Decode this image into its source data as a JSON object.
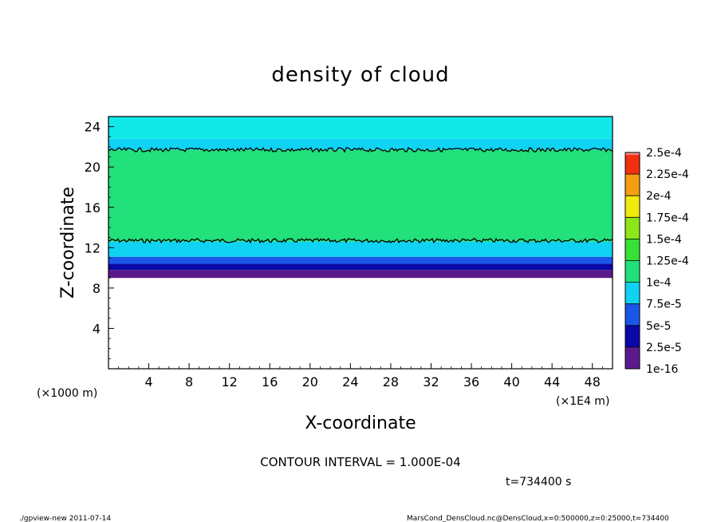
{
  "chart_data": {
    "type": "heatmap",
    "title": "density of cloud",
    "xlabel": "X-coordinate",
    "ylabel": "Z-coordinate",
    "x_unit_label": "(×1000 m)",
    "x_scale_label": "(×1E4 m)",
    "xlim": [
      0,
      50
    ],
    "ylim": [
      0,
      25
    ],
    "x_ticks": [
      "4",
      "8",
      "12",
      "16",
      "20",
      "24",
      "28",
      "32",
      "36",
      "40",
      "44",
      "48"
    ],
    "y_ticks": [
      "4",
      "8",
      "12",
      "16",
      "20",
      "24"
    ],
    "colorbar": {
      "labels": [
        "1e-16",
        "2.5e-5",
        "5e-5",
        "7.5e-5",
        "1e-4",
        "1.25e-4",
        "1.5e-4",
        "1.75e-4",
        "2e-4",
        "2.25e-4",
        "2.5e-4"
      ],
      "colors": [
        "#5a1a8c",
        "#0a08a8",
        "#1a56e8",
        "#10d2f2",
        "#22e07a",
        "#38e038",
        "#8ce61a",
        "#f0ea10",
        "#f2a010",
        "#f23010",
        "#f28888"
      ]
    },
    "layers": [
      {
        "z_from": 9.0,
        "z_to": 9.8,
        "value": "1e-16",
        "color": "#5a1a8c"
      },
      {
        "z_from": 9.8,
        "z_to": 10.4,
        "value": "2.5e-5",
        "color": "#0a08a8"
      },
      {
        "z_from": 10.4,
        "z_to": 11.1,
        "value": "5e-5",
        "color": "#1a56e8"
      },
      {
        "z_from": 11.1,
        "z_to": 12.6,
        "value": "7.5e-5",
        "color": "#10d2f2"
      },
      {
        "z_from": 12.6,
        "z_to": 21.7,
        "value": "1e-4",
        "color": "#22e07a"
      },
      {
        "z_from": 21.7,
        "z_to": 22.8,
        "value": "7.5e-5",
        "color": "#10d2f2"
      },
      {
        "z_from": 22.8,
        "z_to": 25.0,
        "value": "5e-5",
        "color": "#12e8e8"
      }
    ],
    "contour_lines_z": [
      12.7,
      21.7
    ],
    "contour_interval": "CONTOUR INTERVAL = 1.000E-04",
    "time": "t=734400 s"
  },
  "footer": {
    "left": "./gpview-new  2011-07-14",
    "right": "MarsCond_DensCloud.nc@DensCloud,x=0:500000,z=0:25000,t=734400"
  }
}
